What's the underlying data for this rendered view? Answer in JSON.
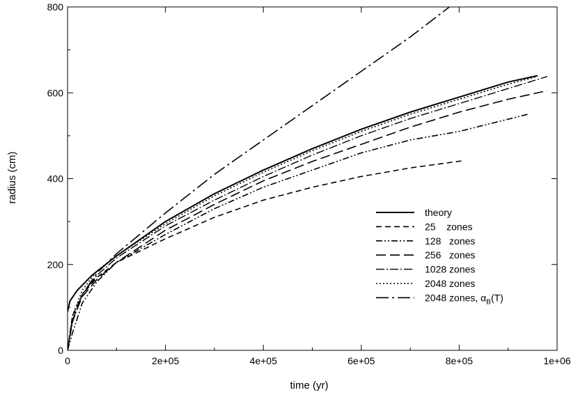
{
  "chart_data": {
    "type": "line",
    "xlabel": "time (yr)",
    "ylabel": "radius (cm)",
    "xlim": [
      0,
      1000000
    ],
    "ylim": [
      0,
      800
    ],
    "x_ticks": [
      0,
      200000,
      400000,
      600000,
      800000,
      1000000
    ],
    "x_tick_labels": [
      "0",
      "2e+05",
      "4e+05",
      "6e+05",
      "8e+05",
      "1e+06"
    ],
    "y_ticks": [
      0,
      200,
      400,
      600,
      800
    ],
    "y_tick_labels": [
      "0",
      "200",
      "400",
      "600",
      "800"
    ],
    "grid": false,
    "legend_position": "lower-right",
    "series": [
      {
        "name": "theory",
        "dash": "",
        "stroke_width": 2,
        "x": [
          0,
          5000,
          20000,
          50000,
          100000,
          200000,
          300000,
          400000,
          500000,
          600000,
          700000,
          800000,
          900000,
          960000
        ],
        "y": [
          90,
          115,
          140,
          175,
          220,
          300,
          365,
          420,
          470,
          515,
          555,
          590,
          625,
          640
        ]
      },
      {
        "name": "25    zones",
        "dash": "8,5",
        "stroke_width": 1.6,
        "x": [
          0,
          10000,
          30000,
          60000,
          100000,
          200000,
          300000,
          400000,
          500000,
          600000,
          700000,
          810000
        ],
        "y": [
          0,
          80,
          130,
          170,
          205,
          260,
          310,
          350,
          380,
          405,
          425,
          442
        ]
      },
      {
        "name": "128   zones",
        "dash": "9,3,2,3,2,3",
        "stroke_width": 1.6,
        "x": [
          0,
          10000,
          30000,
          60000,
          100000,
          200000,
          300000,
          400000,
          500000,
          600000,
          700000,
          800000,
          940000
        ],
        "y": [
          0,
          40,
          110,
          160,
          205,
          270,
          330,
          380,
          420,
          460,
          490,
          510,
          550
        ]
      },
      {
        "name": "256   zones",
        "dash": "14,6",
        "stroke_width": 1.6,
        "x": [
          0,
          10000,
          30000,
          60000,
          100000,
          200000,
          300000,
          400000,
          500000,
          600000,
          700000,
          800000,
          900000,
          980000
        ],
        "y": [
          0,
          70,
          125,
          165,
          205,
          280,
          340,
          395,
          440,
          480,
          520,
          555,
          585,
          605
        ]
      },
      {
        "name": "1028 zones",
        "dash": "12,3,2,3",
        "stroke_width": 1.4,
        "x": [
          0,
          10000,
          30000,
          60000,
          100000,
          200000,
          300000,
          400000,
          500000,
          600000,
          700000,
          800000,
          900000,
          980000
        ],
        "y": [
          0,
          65,
          130,
          175,
          215,
          290,
          350,
          405,
          455,
          500,
          540,
          575,
          610,
          638
        ]
      },
      {
        "name": "2048 zones",
        "dash": "2,3",
        "stroke_width": 1.6,
        "x": [
          0,
          10000,
          30000,
          60000,
          100000,
          200000,
          300000,
          400000,
          500000,
          600000,
          700000,
          800000,
          900000,
          960000
        ],
        "y": [
          0,
          80,
          140,
          185,
          220,
          295,
          360,
          415,
          465,
          510,
          550,
          585,
          620,
          638
        ]
      },
      {
        "name": "2048 zones, ",
        "name_symbol": "α",
        "name_sub": "B",
        "name_suffix": "(T)",
        "dash": "18,5,3,5",
        "stroke_width": 1.6,
        "x": [
          0,
          10000,
          30000,
          60000,
          100000,
          200000,
          300000,
          400000,
          500000,
          600000,
          700000,
          780000
        ],
        "y": [
          0,
          70,
          130,
          180,
          225,
          320,
          410,
          490,
          570,
          650,
          730,
          800
        ]
      }
    ]
  }
}
